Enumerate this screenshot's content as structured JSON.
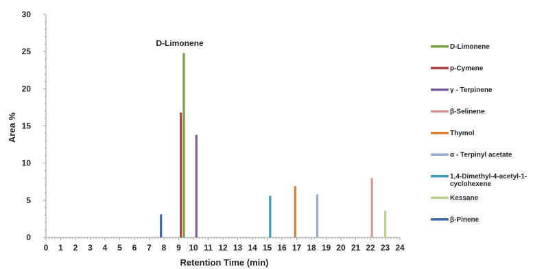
{
  "chart_data": {
    "type": "bar",
    "xlabel": "Retention Time (min)",
    "ylabel": "Area %",
    "xlim": [
      0,
      24
    ],
    "ylim": [
      0,
      30
    ],
    "xticks": [
      "0",
      "1",
      "2",
      "3",
      "4",
      "5",
      "6",
      "7",
      "8",
      "9",
      "10",
      "11",
      "12",
      "13",
      "14",
      "15",
      "16",
      "17",
      "18",
      "19",
      "20",
      "21",
      "22",
      "23",
      "24"
    ],
    "yticks": [
      "0",
      "5",
      "10",
      "15",
      "20",
      "25",
      "30"
    ],
    "grid": false,
    "legend_position": "right",
    "annotations": [
      {
        "text": "D-Limonene",
        "x": 9.35,
        "y": 25.5
      }
    ],
    "series": [
      {
        "name": "D-Limonene",
        "color": "#77a244",
        "x": 9.35,
        "value": 24.8
      },
      {
        "name": "p-Cymene",
        "color": "#b0413e",
        "x": 9.15,
        "value": 16.8
      },
      {
        "name": "γ - Terpinene",
        "color": "#7b5b9e",
        "x": 10.2,
        "value": 13.8
      },
      {
        "name": "β-Selinene",
        "color": "#d99594",
        "x": 22.1,
        "value": 8.0
      },
      {
        "name": "Thymol",
        "color": "#e07b2a",
        "x": 16.9,
        "value": 6.9
      },
      {
        "name": "α - Terpinyl acetate",
        "color": "#94abd6",
        "x": 18.4,
        "value": 5.8
      },
      {
        "name": "1,4-Dimethyl-4-acetyl-1-cyclohexene",
        "color": "#3a9ab8",
        "x": 15.2,
        "value": 5.6
      },
      {
        "name": "Kessane",
        "color": "#b7d48a",
        "x": 23.0,
        "value": 3.6
      },
      {
        "name": "β-Pinene",
        "color": "#3d6aa3",
        "x": 7.8,
        "value": 3.1
      }
    ]
  }
}
